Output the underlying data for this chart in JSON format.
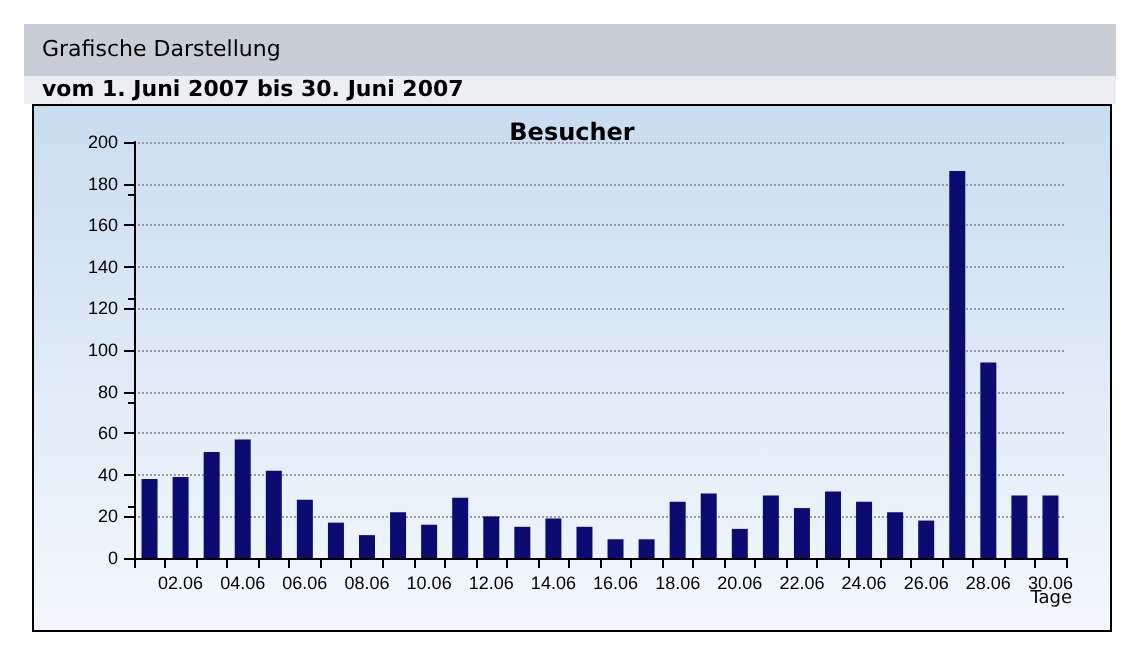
{
  "chart_data": {
    "type": "bar",
    "title": "Grafische Darstellung",
    "subtitle": "vom 1. Juni  2007  bis 30. Juni  2007",
    "annotations": [
      "Besucher"
    ],
    "xlabel": "Tage",
    "categories": [
      null,
      "02.06",
      null,
      "04.06",
      null,
      "06.06",
      null,
      "08.06",
      null,
      "10.06",
      null,
      "12.06",
      null,
      "14.06",
      null,
      "16.06",
      null,
      "18.06",
      null,
      "20.06",
      null,
      "22.06",
      null,
      "24.06",
      null,
      "26.06",
      null,
      "28.06",
      null,
      "30.06"
    ],
    "values": [
      38,
      39,
      51,
      57,
      42,
      28,
      17,
      11,
      22,
      16,
      29,
      20,
      15,
      19,
      15,
      9,
      9,
      27,
      31,
      14,
      30,
      24,
      32,
      27,
      22,
      18,
      186,
      94,
      30,
      30
    ],
    "color": "#0b0b72",
    "ylim": [
      0,
      200
    ],
    "yticks": [
      0,
      20,
      40,
      60,
      80,
      100,
      120,
      140,
      160,
      180,
      200
    ],
    "grid": "y"
  }
}
